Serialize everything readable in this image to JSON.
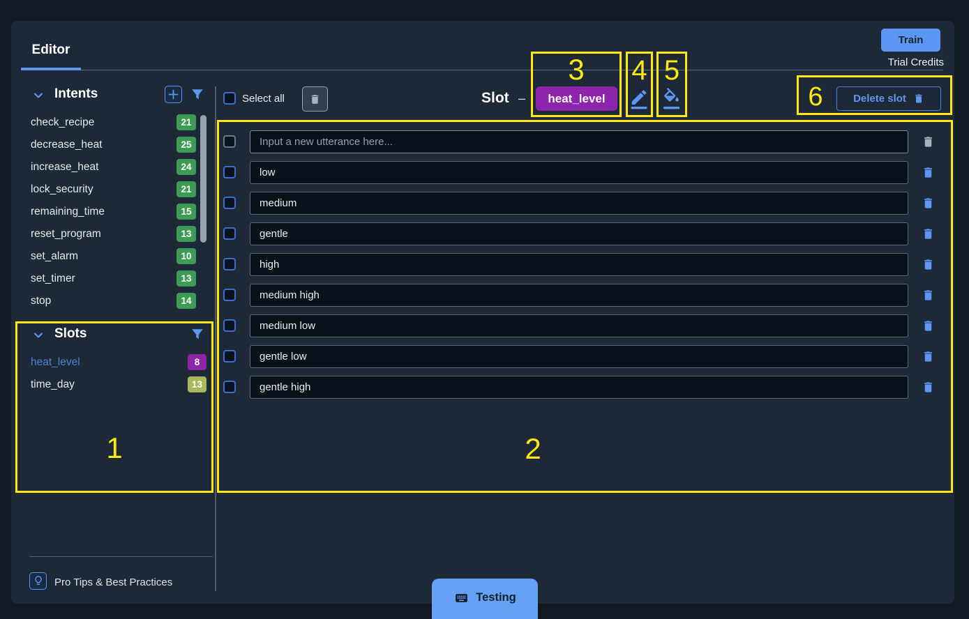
{
  "topbar": {
    "tab": "Editor",
    "train_button": "Train",
    "trial_credits": "Trial Credits"
  },
  "sidebar": {
    "intents": {
      "title": "Intents",
      "items": [
        {
          "label": "check_recipe",
          "count": "21"
        },
        {
          "label": "decrease_heat",
          "count": "25"
        },
        {
          "label": "increase_heat",
          "count": "24"
        },
        {
          "label": "lock_security",
          "count": "21"
        },
        {
          "label": "remaining_time",
          "count": "15"
        },
        {
          "label": "reset_program",
          "count": "13"
        },
        {
          "label": "set_alarm",
          "count": "10"
        },
        {
          "label": "set_timer",
          "count": "13"
        },
        {
          "label": "stop",
          "count": "14"
        }
      ]
    },
    "slots": {
      "title": "Slots",
      "items": [
        {
          "label": "heat_level",
          "count": "8",
          "badge_color": "#8e24aa",
          "selected": true
        },
        {
          "label": "time_day",
          "count": "13",
          "badge_color": "#a9b85a",
          "selected": false
        }
      ]
    },
    "pro_tips": "Pro Tips & Best Practices"
  },
  "main": {
    "select_all": "Select all",
    "slot_label": "Slot",
    "slot_dash": "–",
    "slot_name": "heat_level",
    "delete_slot": "Delete slot",
    "utterance_placeholder": "Input a new utterance here...",
    "utterances": [
      "low",
      "medium",
      "gentle",
      "high",
      "medium high",
      "medium low",
      "gentle low",
      "gentle high"
    ],
    "testing_button": "Testing"
  },
  "annotations": {
    "labels": [
      "1",
      "2",
      "3",
      "4",
      "5",
      "6"
    ]
  },
  "icons": {
    "sidebar": [
      "chevron-down-icon",
      "plus-icon",
      "funnel-filter-icon",
      "lightbulb-icon"
    ],
    "main": [
      "trash-icon",
      "edit-pencil-icon",
      "paint-fill-icon",
      "keyboard-icon"
    ]
  },
  "colors": {
    "accent": "#5d97f3",
    "accent2": "#3c70c8",
    "yellow": "#fde910",
    "panel": "#1d2937",
    "page": "#111923",
    "rowbg": "#081019",
    "green": "#3e9b55",
    "purple": "#8e24aa",
    "olive": "#a9b85a"
  }
}
